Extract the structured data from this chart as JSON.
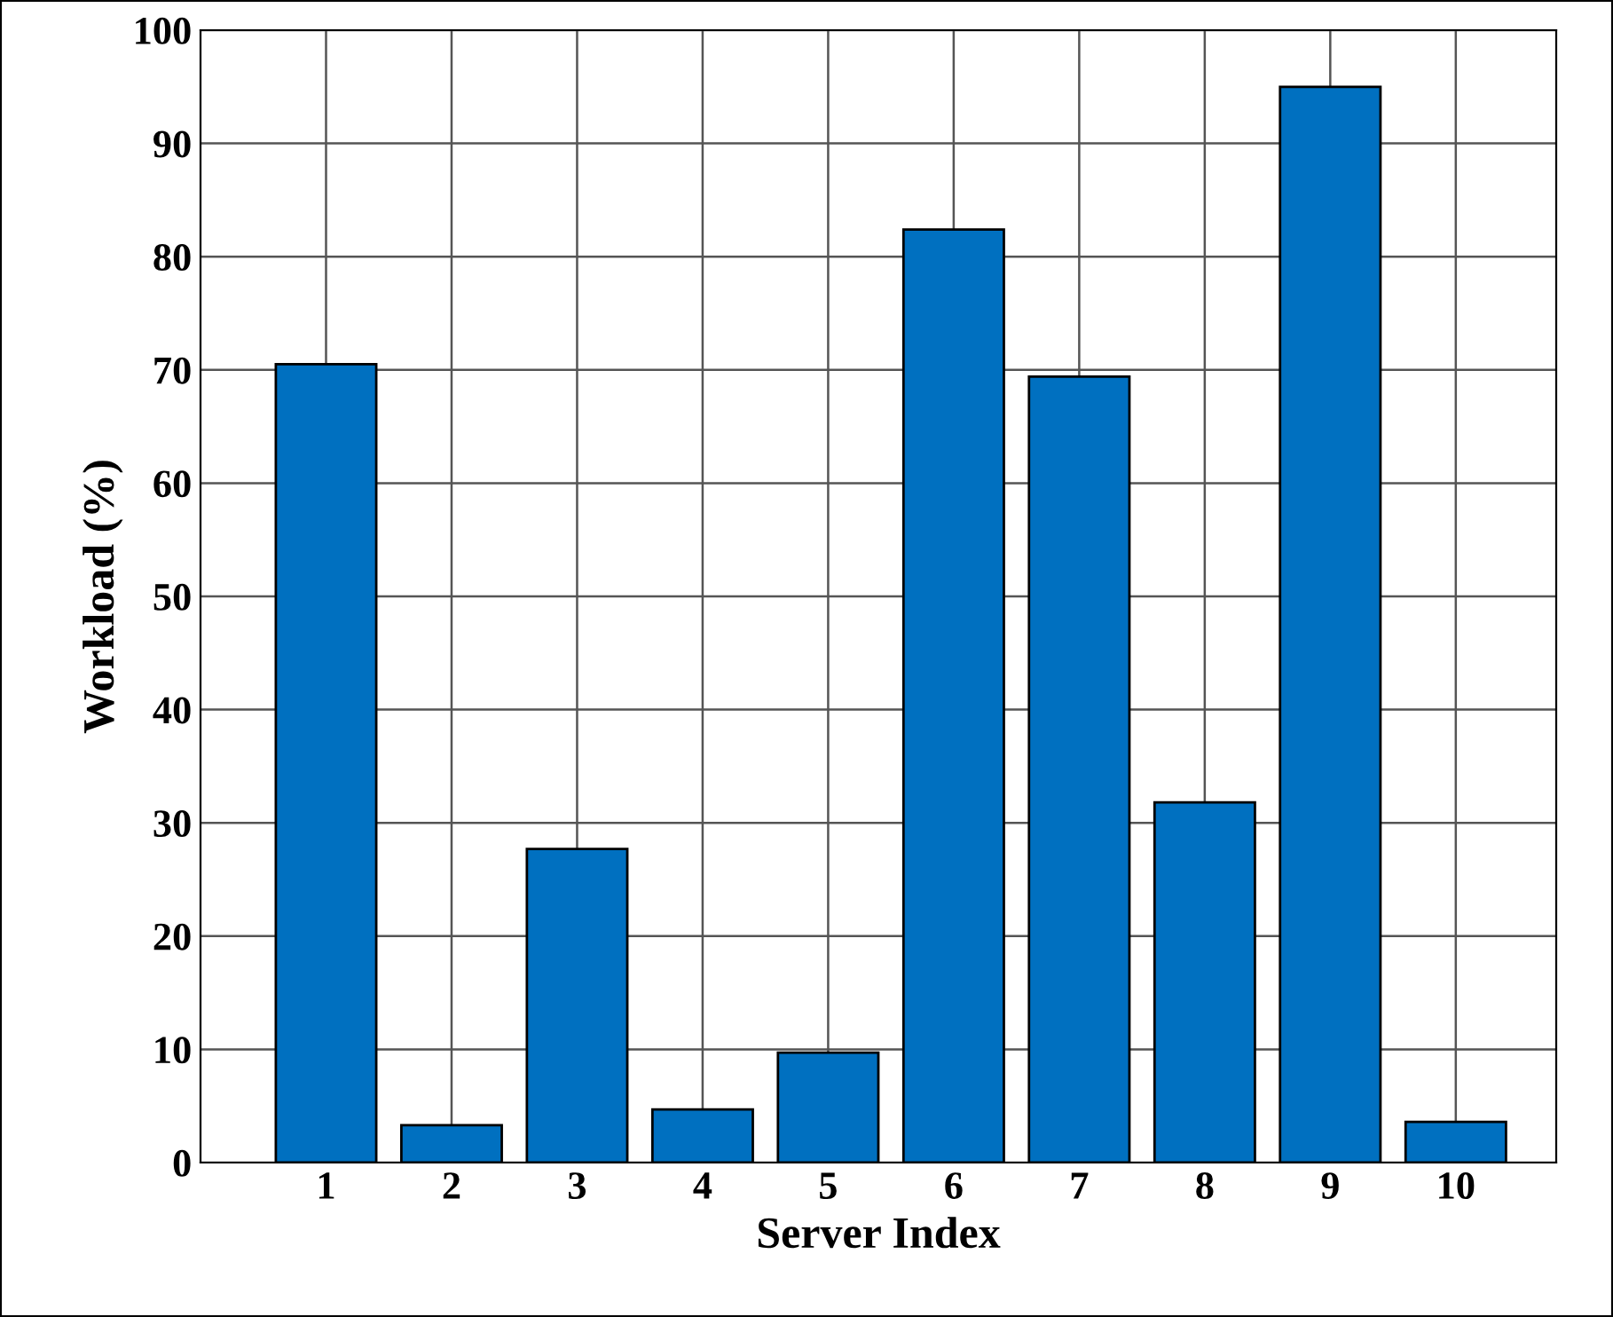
{
  "chart_data": {
    "type": "bar",
    "xlabel": "Server Index",
    "ylabel": "Workload (%)",
    "x": [
      1,
      2,
      3,
      4,
      5,
      6,
      7,
      8,
      9,
      10
    ],
    "values": [
      70.5,
      3.3,
      27.7,
      4.7,
      9.7,
      82.4,
      69.4,
      31.8,
      95.0,
      3.6
    ],
    "color": "#0070c0",
    "xlim": [
      0,
      10.8
    ],
    "xticks": [
      1,
      2,
      3,
      4,
      5,
      6,
      7,
      8,
      9,
      10
    ],
    "ylim": [
      0,
      100
    ],
    "yticks": [
      0,
      10,
      20,
      30,
      40,
      50,
      60,
      70,
      80,
      90,
      100
    ],
    "grid": true,
    "legend": false
  }
}
